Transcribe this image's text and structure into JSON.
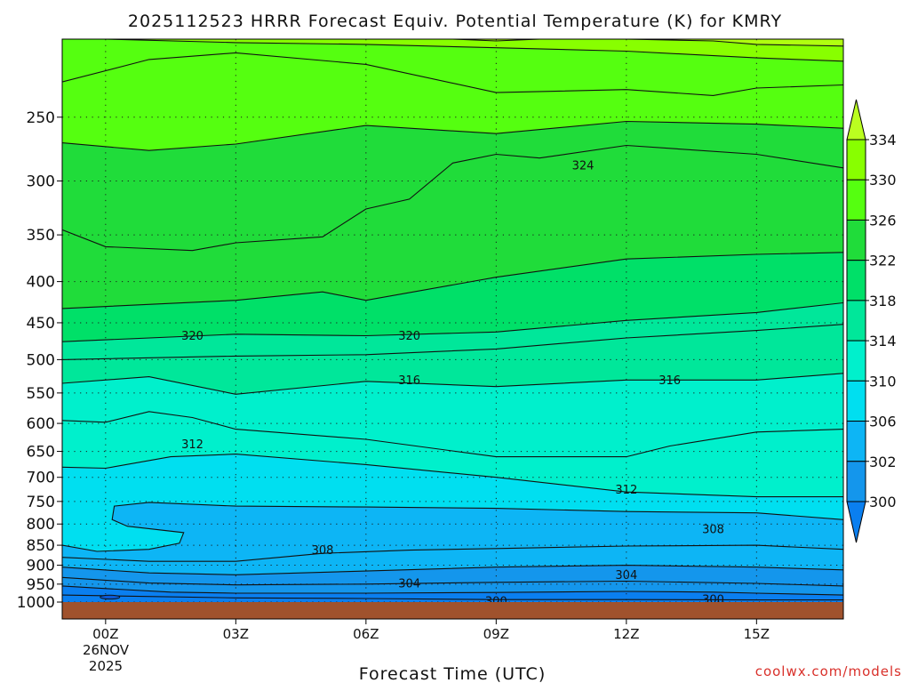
{
  "chart_data": {
    "type": "heatmap",
    "title": "2025112523 HRRR Forecast Equiv. Potential Temperature (K) for KMRY",
    "xlabel": "Forecast Time (UTC)",
    "ylabel": "",
    "credit": "coolwx.com/models",
    "x_ticks": [
      "00Z",
      "03Z",
      "06Z",
      "09Z",
      "12Z",
      "15Z"
    ],
    "x_date": [
      "26NOV",
      "2025"
    ],
    "x_range_hours": [
      -1,
      17
    ],
    "y_ticks": [
      "250",
      "300",
      "350",
      "400",
      "450",
      "500",
      "550",
      "600",
      "650",
      "700",
      "750",
      "800",
      "850",
      "900",
      "950",
      "1000"
    ],
    "y_range_hpa": [
      200,
      1000
    ],
    "y_scale": "log",
    "grid": "dotted horizontal at pressure ticks, dotted vertical at 3-hour ticks",
    "ground_color": "#a0522d",
    "colorbar": {
      "labels": [
        "334",
        "330",
        "326",
        "322",
        "318",
        "314",
        "310",
        "306",
        "302",
        "300"
      ],
      "levels": [
        300,
        302,
        306,
        310,
        314,
        318,
        322,
        326,
        330,
        334
      ],
      "colors": [
        "#0a7ff0",
        "#1496ec",
        "#0db5f5",
        "#00dff0",
        "#00f0cc",
        "#00e79a",
        "#00e068",
        "#20dc3a",
        "#55ff10",
        "#88ff00",
        "#bbff20"
      ],
      "extend": "both"
    },
    "fill_bands": [
      {
        "lower_contour": "300b",
        "upper_contour": "301",
        "color": "#0a7ff0"
      },
      {
        "lower_contour": "301",
        "upper_contour": "303",
        "color": "#1496ec"
      },
      {
        "lower_contour": "303",
        "upper_contour": "305",
        "color": "#1496ec"
      },
      {
        "lower_contour": "305",
        "upper_contour": "307",
        "color": "#0db5f5"
      },
      {
        "lower_contour": "307",
        "upper_contour": "309",
        "color": "#0db5f5"
      },
      {
        "lower_contour": "309",
        "upper_contour": "311",
        "color": "#00dff0"
      },
      {
        "lower_contour": "311",
        "upper_contour": "313",
        "color": "#00f0cc"
      },
      {
        "lower_contour": "313",
        "upper_contour": "315",
        "color": "#00f0cc"
      },
      {
        "lower_contour": "315",
        "upper_contour": "317",
        "color": "#00e79a"
      },
      {
        "lower_contour": "317",
        "upper_contour": "319",
        "color": "#00e79a"
      },
      {
        "lower_contour": "319",
        "upper_contour": "321",
        "color": "#00e068"
      },
      {
        "lower_contour": "321",
        "upper_contour": "323",
        "color": "#20dc3a"
      },
      {
        "lower_contour": "323",
        "upper_contour": "325",
        "color": "#20dc3a"
      },
      {
        "lower_contour": "325",
        "upper_contour": "327",
        "color": "#55ff10"
      },
      {
        "lower_contour": "327",
        "upper_contour": "329",
        "color": "#55ff10"
      },
      {
        "lower_contour": "329",
        "upper_contour": "331",
        "color": "#88ff00"
      },
      {
        "lower_contour": "331",
        "upper_contour": "top",
        "color": "#88ff00"
      }
    ],
    "contours": [
      {
        "id": "300b",
        "theta": 300,
        "points": [
          [
            -1,
            980
          ],
          [
            3,
            988
          ],
          [
            6,
            990
          ],
          [
            9,
            993
          ],
          [
            12,
            993
          ],
          [
            15,
            994
          ],
          [
            17,
            994
          ]
        ]
      },
      {
        "id": "301",
        "theta": 301,
        "points": [
          [
            -1,
            955
          ],
          [
            0,
            962
          ],
          [
            1.5,
            972
          ],
          [
            3,
            975
          ],
          [
            6,
            975
          ],
          [
            9,
            973
          ],
          [
            12,
            970
          ],
          [
            14,
            972
          ],
          [
            15,
            975
          ],
          [
            17,
            980
          ]
        ]
      },
      {
        "id": "303",
        "theta": 303,
        "points": [
          [
            -1,
            932
          ],
          [
            1,
            947
          ],
          [
            3,
            952
          ],
          [
            6,
            950
          ],
          [
            9,
            945
          ],
          [
            12,
            942
          ],
          [
            15,
            948
          ],
          [
            17,
            955
          ]
        ]
      },
      {
        "id": "305",
        "theta": 305,
        "points": [
          [
            -1,
            905
          ],
          [
            1,
            920
          ],
          [
            3,
            925
          ],
          [
            6,
            915
          ],
          [
            9,
            905
          ],
          [
            12,
            900
          ],
          [
            15,
            905
          ],
          [
            17,
            912
          ]
        ]
      },
      {
        "id": "307",
        "theta": 307,
        "points": [
          [
            -1,
            880
          ],
          [
            1,
            890
          ],
          [
            3,
            890
          ],
          [
            5,
            870
          ],
          [
            7,
            862
          ],
          [
            9,
            858
          ],
          [
            12,
            852
          ],
          [
            15,
            850
          ],
          [
            17,
            860
          ]
        ]
      },
      {
        "id": "309",
        "theta": 309,
        "points": [
          [
            -1,
            850
          ],
          [
            -0.2,
            865
          ],
          [
            1,
            860
          ],
          [
            1.7,
            845
          ],
          [
            1.8,
            820
          ],
          [
            0.5,
            805
          ],
          [
            0.15,
            790
          ],
          [
            0.2,
            760
          ],
          [
            1,
            752
          ],
          [
            3,
            760
          ],
          [
            6,
            762
          ],
          [
            9,
            765
          ],
          [
            12,
            772
          ],
          [
            15,
            775
          ],
          [
            17,
            790
          ]
        ]
      },
      {
        "id": "311",
        "theta": 311,
        "points": [
          [
            -1,
            680
          ],
          [
            0,
            682
          ],
          [
            1.5,
            660
          ],
          [
            3,
            655
          ],
          [
            6,
            675
          ],
          [
            9,
            700
          ],
          [
            12,
            730
          ],
          [
            15,
            740
          ],
          [
            17,
            740
          ]
        ]
      },
      {
        "id": "313",
        "theta": 313,
        "points": [
          [
            -1,
            595
          ],
          [
            0,
            598
          ],
          [
            1,
            580
          ],
          [
            2,
            590
          ],
          [
            3,
            610
          ],
          [
            6,
            628
          ],
          [
            9,
            660
          ],
          [
            12,
            660
          ],
          [
            13,
            640
          ],
          [
            15,
            615
          ],
          [
            17,
            610
          ]
        ]
      },
      {
        "id": "315",
        "theta": 315,
        "points": [
          [
            -1,
            535
          ],
          [
            1,
            525
          ],
          [
            3,
            552
          ],
          [
            6,
            532
          ],
          [
            9,
            540
          ],
          [
            12,
            530
          ],
          [
            15,
            530
          ],
          [
            17,
            520
          ]
        ]
      },
      {
        "id": "317",
        "theta": 317,
        "points": [
          [
            -1,
            500
          ],
          [
            3,
            495
          ],
          [
            6,
            493
          ],
          [
            9,
            485
          ],
          [
            12,
            470
          ],
          [
            15,
            460
          ],
          [
            17,
            452
          ]
        ]
      },
      {
        "id": "319",
        "theta": 319,
        "points": [
          [
            -1,
            475
          ],
          [
            3,
            465
          ],
          [
            6,
            467
          ],
          [
            9,
            462
          ],
          [
            12,
            447
          ],
          [
            15,
            437
          ],
          [
            17,
            425
          ]
        ]
      },
      {
        "id": "321",
        "theta": 321,
        "points": [
          [
            -1,
            432
          ],
          [
            3,
            422
          ],
          [
            5,
            412
          ],
          [
            6,
            422
          ],
          [
            9,
            395
          ],
          [
            12,
            375
          ],
          [
            15,
            370
          ],
          [
            17,
            368
          ]
        ]
      },
      {
        "id": "323",
        "theta": 323,
        "points": [
          [
            -1,
            345
          ],
          [
            0,
            362
          ],
          [
            2,
            366
          ],
          [
            3,
            358
          ],
          [
            5,
            352
          ],
          [
            6,
            325
          ],
          [
            7,
            316
          ],
          [
            8,
            285
          ],
          [
            9,
            278
          ],
          [
            10,
            281
          ],
          [
            12,
            271
          ],
          [
            15,
            278
          ],
          [
            17,
            289
          ]
        ]
      },
      {
        "id": "325",
        "theta": 325,
        "points": [
          [
            -1,
            269
          ],
          [
            1,
            275
          ],
          [
            3,
            270
          ],
          [
            6,
            256
          ],
          [
            9,
            262
          ],
          [
            12,
            253
          ],
          [
            15,
            255
          ],
          [
            17,
            258
          ]
        ]
      },
      {
        "id": "327",
        "theta": 327,
        "points": [
          [
            -1,
            226
          ],
          [
            1,
            212
          ],
          [
            3,
            208
          ],
          [
            6,
            215
          ],
          [
            9,
            233
          ],
          [
            12,
            231
          ],
          [
            14,
            235
          ],
          [
            15,
            230
          ],
          [
            17,
            228
          ]
        ]
      },
      {
        "id": "329",
        "theta": 329,
        "points": [
          [
            0,
            200
          ],
          [
            3,
            202
          ],
          [
            6,
            203
          ],
          [
            9,
            205
          ],
          [
            12,
            207
          ],
          [
            15,
            211
          ],
          [
            17,
            213
          ]
        ]
      },
      {
        "id": "331",
        "theta": 331,
        "points": [
          [
            8,
            200
          ],
          [
            9,
            201
          ],
          [
            10,
            200
          ],
          [
            12,
            200
          ],
          [
            14,
            201
          ],
          [
            15,
            203
          ],
          [
            17,
            204
          ]
        ]
      }
    ],
    "contour_labels": [
      {
        "text": "324",
        "x": 11.0,
        "p": 287
      },
      {
        "text": "320",
        "x": 2.0,
        "p": 467
      },
      {
        "text": "320",
        "x": 7.0,
        "p": 467
      },
      {
        "text": "316",
        "x": 7.0,
        "p": 530
      },
      {
        "text": "316",
        "x": 13.0,
        "p": 530
      },
      {
        "text": "312",
        "x": 2.0,
        "p": 637
      },
      {
        "text": "312",
        "x": 12.0,
        "p": 725
      },
      {
        "text": "308",
        "x": 14.0,
        "p": 812
      },
      {
        "text": "308",
        "x": 5.0,
        "p": 862
      },
      {
        "text": "304",
        "x": 7.0,
        "p": 948
      },
      {
        "text": "304",
        "x": 12.0,
        "p": 925
      },
      {
        "text": "300",
        "x": 9.0,
        "p": 997
      },
      {
        "text": "300",
        "x": 14.0,
        "p": 993
      }
    ]
  }
}
